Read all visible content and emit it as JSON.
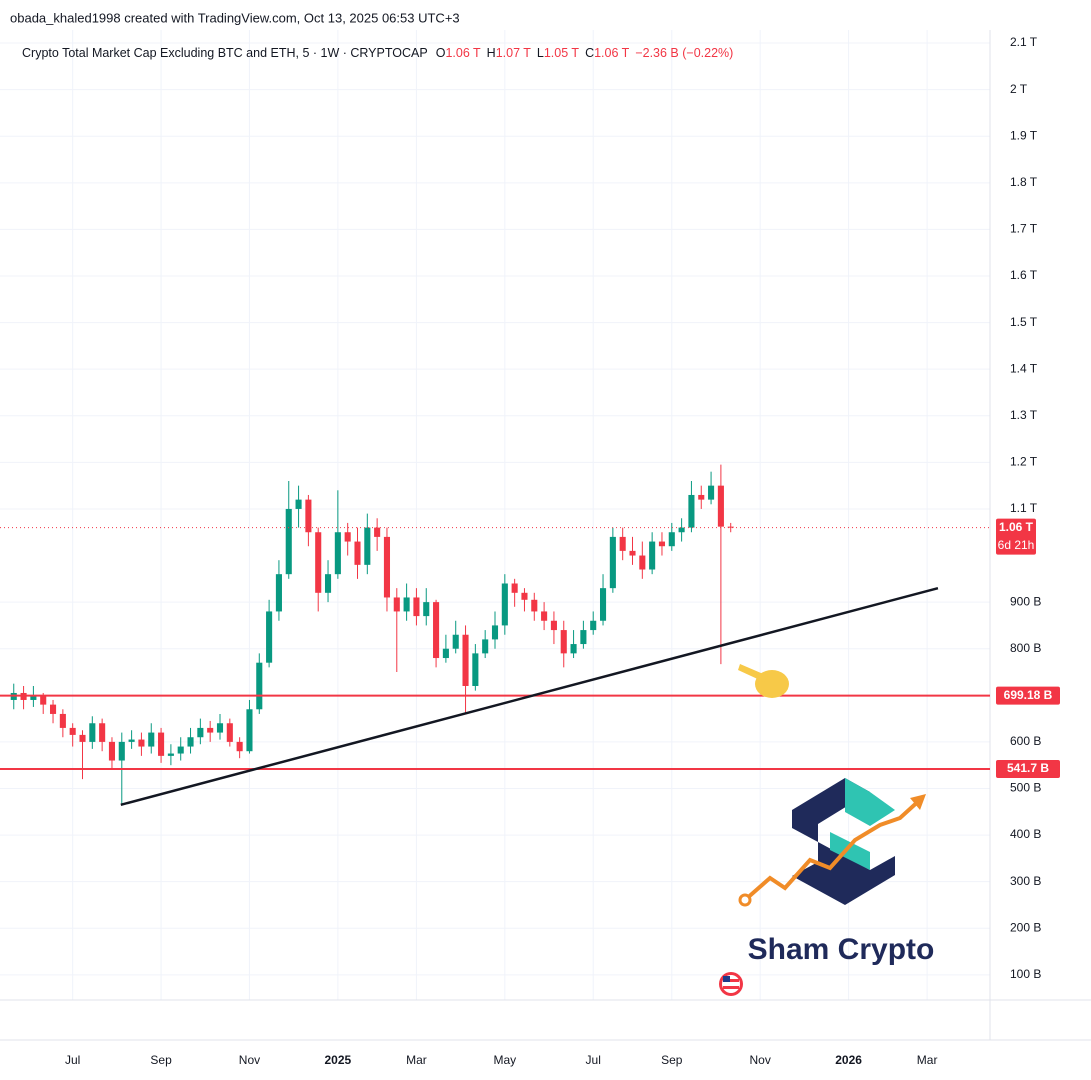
{
  "credit": "obada_khaled1998 created with TradingView.com, Oct 13, 2025 06:53 UTC+3",
  "watermark": "Sham Crypto",
  "chart_data": {
    "type": "candlestick",
    "title": "Crypto Total Market Cap Excluding BTC and ETH, 5 · 1W · CRYPTOCAP",
    "legend_values": [
      {
        "key": "O",
        "text": "1.06 T"
      },
      {
        "key": "H",
        "text": "1.07 T"
      },
      {
        "key": "L",
        "text": "1.05 T"
      },
      {
        "key": "C",
        "text": "1.06 T"
      }
    ],
    "change": "−2.36 B (−0.22%)",
    "up_color": "#089981",
    "down_color": "#f23645",
    "open": [
      690,
      705,
      690,
      700,
      680,
      660,
      630,
      615,
      600,
      640,
      600,
      560,
      600,
      605,
      590,
      620,
      570,
      575,
      590,
      610,
      630,
      620,
      640,
      600,
      580,
      670,
      770,
      880,
      960,
      1100,
      1120,
      1050,
      920,
      960,
      1050,
      1030,
      980,
      1060,
      1040,
      910,
      880,
      910,
      870,
      900,
      780,
      800,
      830,
      720,
      790,
      820,
      850,
      940,
      920,
      905,
      880,
      860,
      840,
      790,
      810,
      840,
      860,
      930,
      1040,
      1010,
      1000,
      970,
      1030,
      1020,
      1050,
      1060,
      1130,
      1120,
      1150,
      1062
    ],
    "high": [
      725,
      720,
      720,
      705,
      690,
      670,
      640,
      625,
      655,
      650,
      610,
      620,
      625,
      620,
      640,
      630,
      595,
      610,
      630,
      650,
      645,
      660,
      650,
      610,
      690,
      790,
      905,
      990,
      1160,
      1150,
      1130,
      1060,
      990,
      1140,
      1070,
      1060,
      1090,
      1080,
      1060,
      930,
      940,
      930,
      930,
      905,
      830,
      860,
      850,
      810,
      840,
      880,
      960,
      950,
      930,
      920,
      900,
      880,
      860,
      840,
      860,
      880,
      960,
      1060,
      1060,
      1040,
      1030,
      1050,
      1050,
      1070,
      1080,
      1160,
      1150,
      1180,
      1195,
      1070
    ],
    "low": [
      670,
      670,
      675,
      660,
      640,
      610,
      590,
      520,
      585,
      580,
      540,
      465,
      585,
      570,
      575,
      555,
      550,
      560,
      575,
      595,
      600,
      605,
      590,
      565,
      575,
      660,
      760,
      860,
      950,
      1060,
      1020,
      880,
      900,
      950,
      1000,
      950,
      960,
      1010,
      880,
      750,
      860,
      850,
      850,
      760,
      770,
      790,
      660,
      710,
      780,
      800,
      830,
      890,
      880,
      860,
      840,
      810,
      760,
      780,
      800,
      830,
      850,
      920,
      990,
      980,
      950,
      960,
      1000,
      1010,
      1030,
      1050,
      1100,
      1110,
      767,
      1050
    ],
    "close": [
      705,
      690,
      700,
      680,
      660,
      630,
      615,
      600,
      640,
      600,
      560,
      600,
      605,
      590,
      620,
      570,
      575,
      590,
      610,
      630,
      620,
      640,
      600,
      580,
      670,
      770,
      880,
      960,
      1100,
      1120,
      1050,
      920,
      960,
      1050,
      1030,
      980,
      1060,
      1040,
      910,
      880,
      910,
      870,
      900,
      780,
      800,
      830,
      720,
      790,
      820,
      850,
      940,
      920,
      905,
      880,
      860,
      840,
      790,
      810,
      840,
      860,
      930,
      1040,
      1010,
      1000,
      970,
      1030,
      1020,
      1050,
      1060,
      1130,
      1120,
      1150,
      1062,
      1060
    ],
    "xlim": [
      -1.4,
      99.4
    ],
    "xticks": [
      {
        "value": 6,
        "label": "Jul"
      },
      {
        "value": 15,
        "label": "Sep"
      },
      {
        "value": 24,
        "label": "Nov"
      },
      {
        "value": 33,
        "label": "2025"
      },
      {
        "value": 41,
        "label": "Mar"
      },
      {
        "value": 50,
        "label": "May"
      },
      {
        "value": 59,
        "label": "Jul"
      },
      {
        "value": 67,
        "label": "Sep"
      },
      {
        "value": 76,
        "label": "Nov"
      },
      {
        "value": 85,
        "label": "2026"
      },
      {
        "value": 93,
        "label": "Mar"
      }
    ],
    "ylim": [
      46,
      2128
    ],
    "yticks": [
      {
        "value": 100,
        "label": "100 B"
      },
      {
        "value": 200,
        "label": "200 B"
      },
      {
        "value": 300,
        "label": "300 B"
      },
      {
        "value": 400,
        "label": "400 B"
      },
      {
        "value": 500,
        "label": "500 B"
      },
      {
        "value": 600,
        "label": "600 B"
      },
      {
        "value": 800,
        "label": "800 B"
      },
      {
        "value": 900,
        "label": "900 B"
      },
      {
        "value": 1100,
        "label": "1.1 T"
      },
      {
        "value": 1200,
        "label": "1.2 T"
      },
      {
        "value": 1300,
        "label": "1.3 T"
      },
      {
        "value": 1400,
        "label": "1.4 T"
      },
      {
        "value": 1500,
        "label": "1.5 T"
      },
      {
        "value": 1600,
        "label": "1.6 T"
      },
      {
        "value": 1700,
        "label": "1.7 T"
      },
      {
        "value": 1800,
        "label": "1.8 T"
      },
      {
        "value": 1900,
        "label": "1.9 T"
      },
      {
        "value": 2000,
        "label": "2 T"
      },
      {
        "value": 2100,
        "label": "2.1 T"
      }
    ],
    "grid": true,
    "levels": [
      {
        "value": 699.18,
        "label": "699.18 B",
        "color": "#f23645"
      },
      {
        "value": 541.7,
        "label": "541.7 B",
        "color": "#f23645"
      }
    ],
    "trendline": {
      "x": [
        10.9,
        94.1
      ],
      "values": [
        465,
        930
      ],
      "color": "#131722"
    },
    "last": {
      "value": 1060,
      "label": "1.06 T",
      "countdown": "6d 21h",
      "color": "#f23645"
    }
  }
}
